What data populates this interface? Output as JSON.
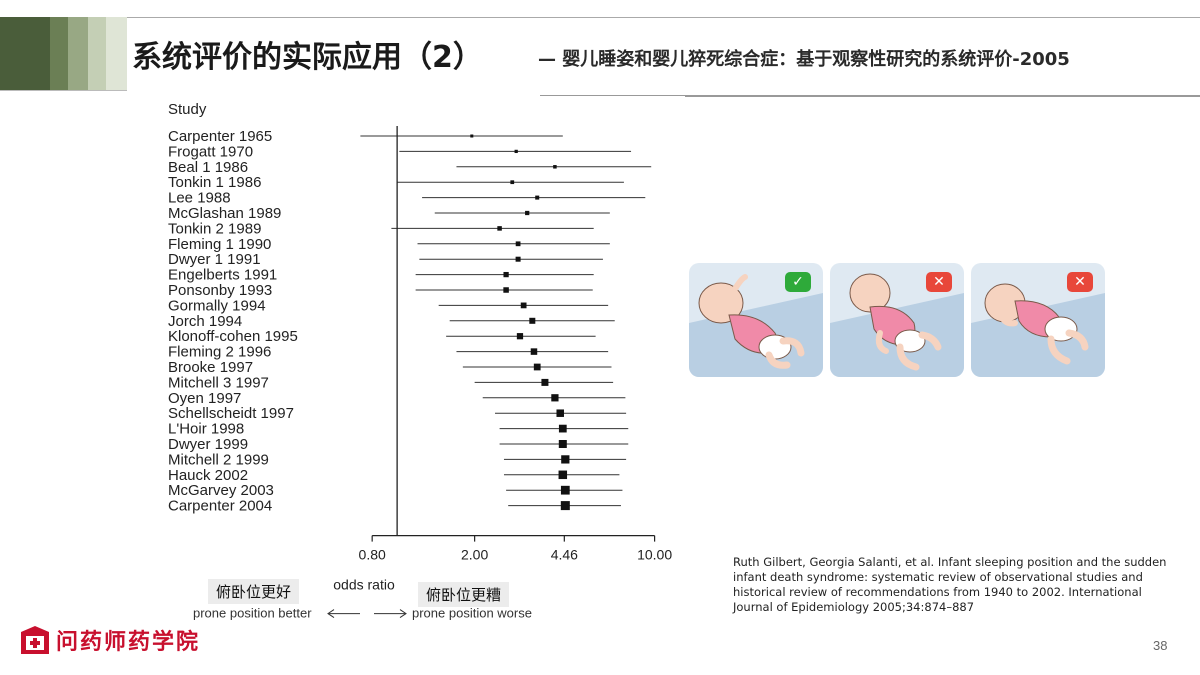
{
  "header": {
    "title": "系统评价的实际应用（2）",
    "subtitle": "— 婴儿睡姿和婴儿猝死综合症：基于观察性研究的系统评价-2005"
  },
  "colors": {
    "stripe1": "#4a5d3a",
    "stripe2": "#6b7f55",
    "stripe3": "#98a884",
    "stripe4": "#c4cfb5",
    "stripe5": "#dfe5d6",
    "check_badge": "#2eaa3a",
    "cross_badge": "#e8473a",
    "brand_red": "#c8102e"
  },
  "chart_data": {
    "type": "forest",
    "header": "Study",
    "xlabel": "odds ratio",
    "scale": "log",
    "xticks": [
      "0.80",
      "2.00",
      "4.46",
      "10.00"
    ],
    "xlim": [
      0.6,
      12
    ],
    "null_line": 1,
    "left_arrow_label": "prone position better",
    "right_arrow_label": "prone position worse",
    "studies": [
      {
        "name": "Carpenter 1965",
        "or": 1.95,
        "lo": 0.72,
        "hi": 4.4
      },
      {
        "name": "Frogatt 1970",
        "or": 2.9,
        "lo": 1.02,
        "hi": 8.1
      },
      {
        "name": "Beal 1 1986",
        "or": 4.1,
        "lo": 1.7,
        "hi": 9.7
      },
      {
        "name": "Tonkin 1 1986",
        "or": 2.8,
        "lo": 1.0,
        "hi": 7.6
      },
      {
        "name": "Lee 1988",
        "or": 3.5,
        "lo": 1.25,
        "hi": 9.2
      },
      {
        "name": "McGlashan 1989",
        "or": 3.2,
        "lo": 1.4,
        "hi": 6.7
      },
      {
        "name": "Tonkin 2 1989",
        "or": 2.5,
        "lo": 0.95,
        "hi": 5.8
      },
      {
        "name": "Fleming 1 1990",
        "or": 2.95,
        "lo": 1.2,
        "hi": 6.7
      },
      {
        "name": "Dwyer 1 1991",
        "or": 2.95,
        "lo": 1.22,
        "hi": 6.3
      },
      {
        "name": "Engelberts 1991",
        "or": 2.65,
        "lo": 1.18,
        "hi": 5.8
      },
      {
        "name": "Ponsonby 1993",
        "or": 2.65,
        "lo": 1.18,
        "hi": 5.75
      },
      {
        "name": "Gormally 1994",
        "or": 3.1,
        "lo": 1.45,
        "hi": 6.6
      },
      {
        "name": "Jorch 1994",
        "or": 3.35,
        "lo": 1.6,
        "hi": 7.0
      },
      {
        "name": "Klonoff-cohen 1995",
        "or": 3.0,
        "lo": 1.55,
        "hi": 5.9
      },
      {
        "name": "Fleming 2 1996",
        "or": 3.4,
        "lo": 1.7,
        "hi": 6.6
      },
      {
        "name": "Brooke 1997",
        "or": 3.5,
        "lo": 1.8,
        "hi": 6.8
      },
      {
        "name": "Mitchell 3 1997",
        "or": 3.75,
        "lo": 2.0,
        "hi": 6.9
      },
      {
        "name": "Oyen 1997",
        "or": 4.1,
        "lo": 2.15,
        "hi": 7.7
      },
      {
        "name": "Schellscheidt 1997",
        "or": 4.3,
        "lo": 2.4,
        "hi": 7.75
      },
      {
        "name": "L'Hoir 1998",
        "or": 4.4,
        "lo": 2.5,
        "hi": 7.9
      },
      {
        "name": "Dwyer 1999",
        "or": 4.4,
        "lo": 2.5,
        "hi": 7.9
      },
      {
        "name": "Mitchell 2 1999",
        "or": 4.5,
        "lo": 2.6,
        "hi": 7.75
      },
      {
        "name": "Hauck 2002",
        "or": 4.4,
        "lo": 2.6,
        "hi": 7.3
      },
      {
        "name": "McGarvey 2003",
        "or": 4.5,
        "lo": 2.65,
        "hi": 7.5
      },
      {
        "name": "Carpenter 2004",
        "or": 4.5,
        "lo": 2.7,
        "hi": 7.4
      }
    ]
  },
  "labels": {
    "better_cn": "俯卧位更好",
    "worse_cn": "俯卧位更糟"
  },
  "illustrations": [
    {
      "icon": "baby-supine-icon",
      "badge": "✓"
    },
    {
      "icon": "baby-prone-icon",
      "badge": "✕"
    },
    {
      "icon": "baby-side-icon",
      "badge": "✕"
    }
  ],
  "citation": "Ruth Gilbert, Georgia Salanti, et al. Infant sleeping position and the sudden infant death syndrome: systematic review of observational studies and historical review of recommendations from 1940 to 2002. International Journal of Epidemiology 2005;34:874–887",
  "footer": {
    "page_number": "38",
    "brand": "问药师药学院"
  }
}
